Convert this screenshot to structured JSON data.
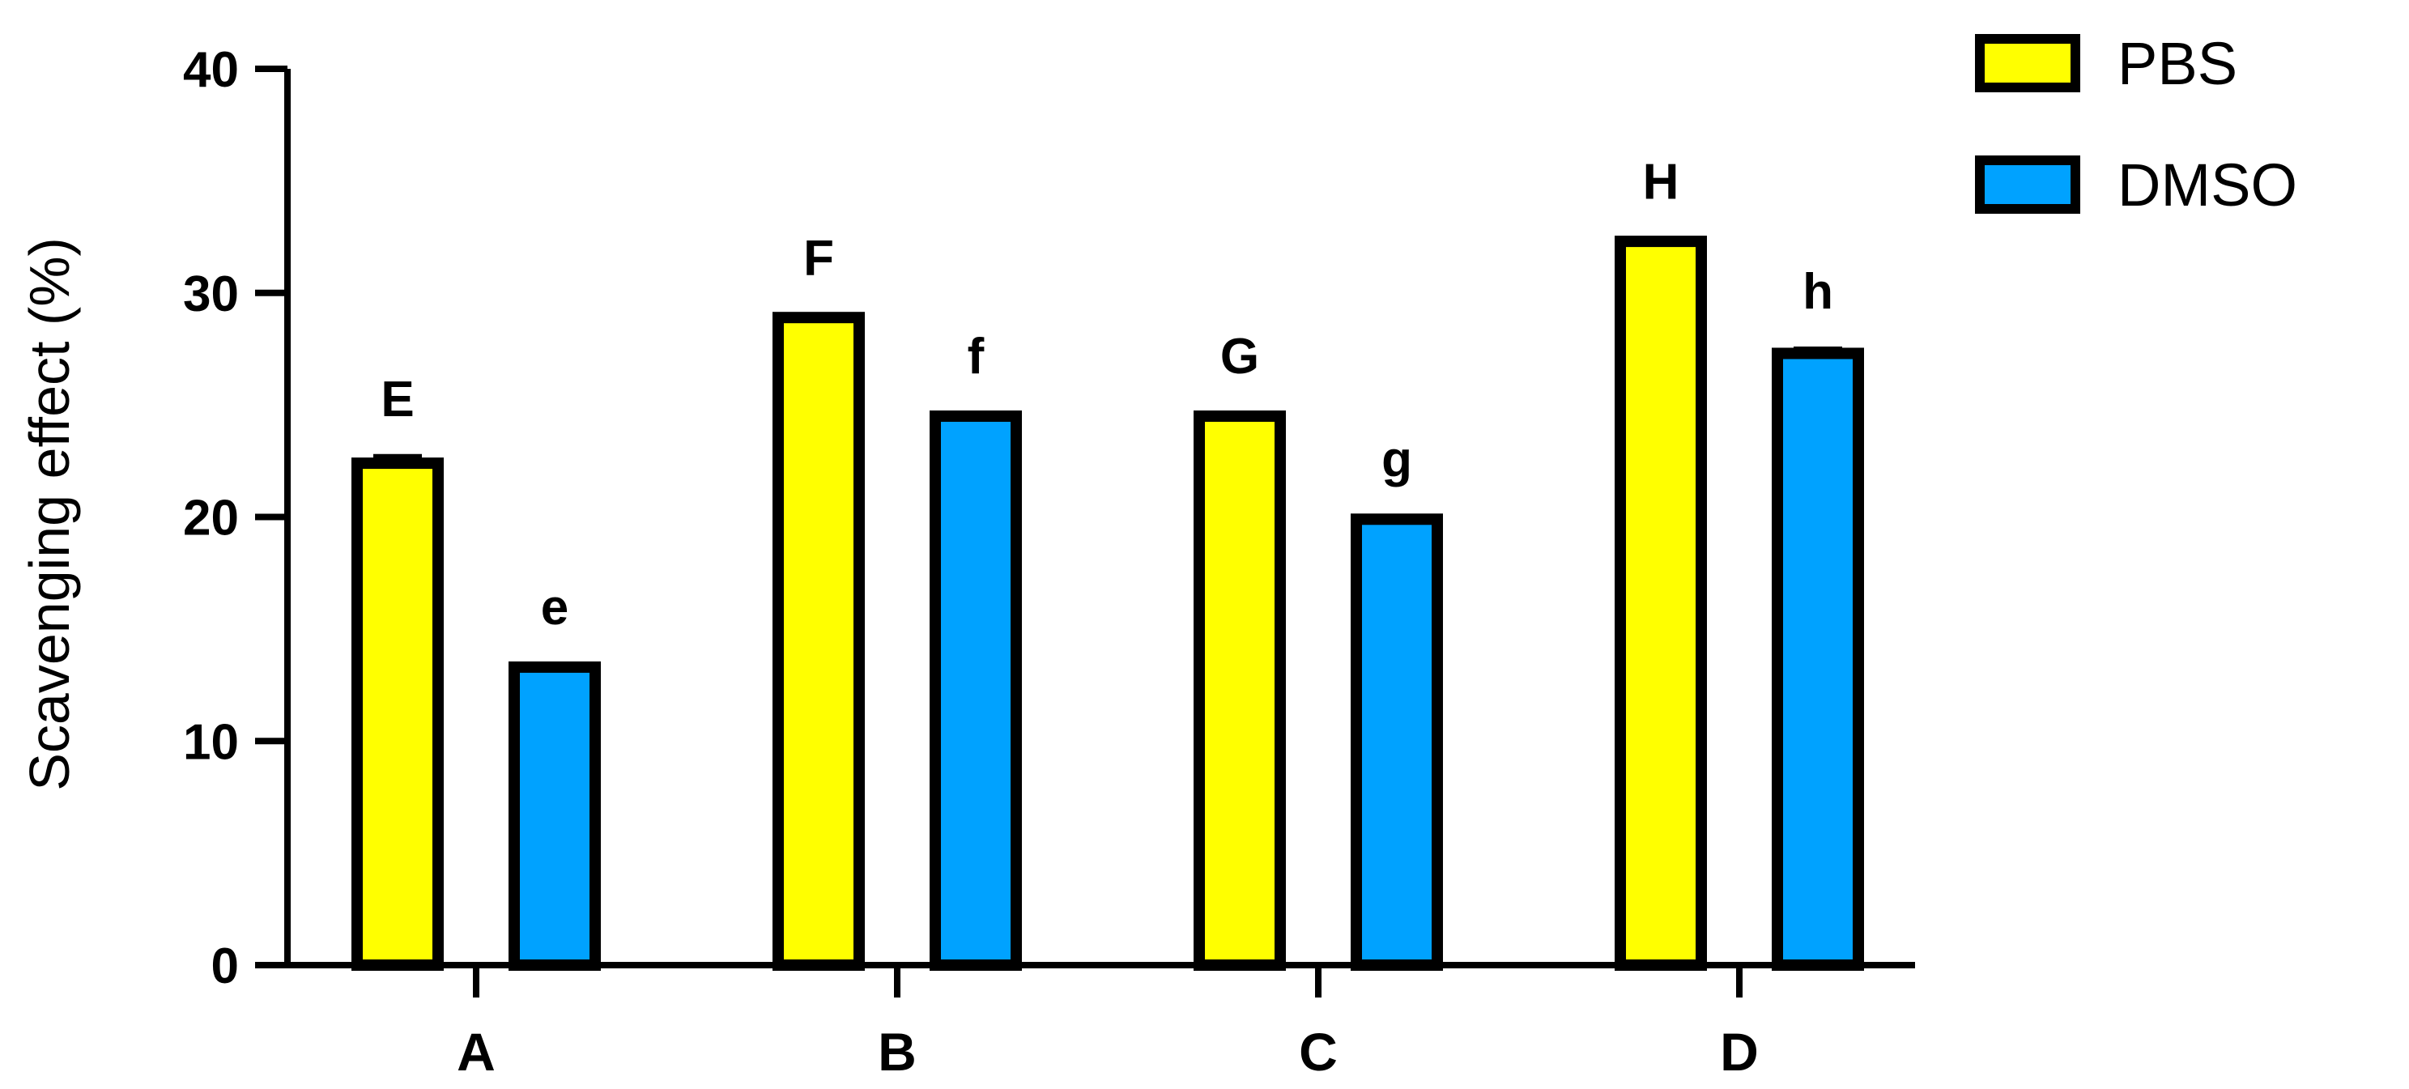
{
  "chart_data": {
    "type": "bar",
    "title": "",
    "xlabel": "",
    "ylabel": "Scavenging effect (%)",
    "ylim": [
      0,
      40
    ],
    "yticks": [
      0,
      10,
      20,
      30,
      40
    ],
    "categories": [
      "A",
      "B",
      "C",
      "D"
    ],
    "legend_position": "top-right",
    "series": [
      {
        "name": "PBS",
        "color": "#ffff00",
        "values": [
          22.4,
          28.9,
          24.5,
          32.3
        ],
        "errors": [
          0.3,
          0.1,
          0.1,
          0.1
        ],
        "labels": [
          "E",
          "F",
          "G",
          "H"
        ]
      },
      {
        "name": "DMSO",
        "color": "#00a2ff",
        "values": [
          13.3,
          24.5,
          19.9,
          27.3
        ],
        "errors": [
          0.1,
          0.1,
          0.1,
          0.2
        ],
        "labels": [
          "e",
          "f",
          "g",
          "h"
        ]
      }
    ]
  }
}
